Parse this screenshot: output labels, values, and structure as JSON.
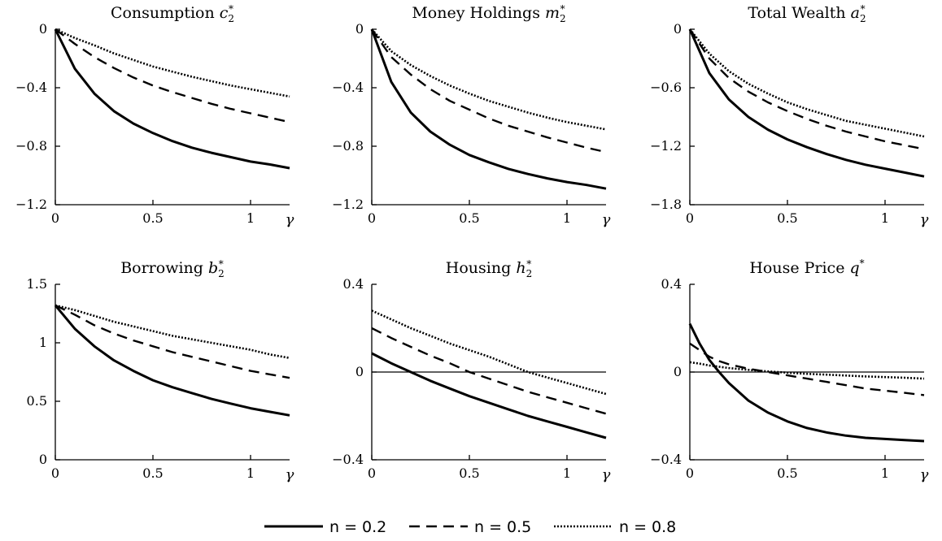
{
  "chart_data": [
    {
      "type": "line",
      "title": "Consumption",
      "title_var": "c",
      "title_sub": "2",
      "title_sup": "*",
      "xlabel": "γ",
      "ylabel": "",
      "xlim": [
        0,
        1.2
      ],
      "ylim": [
        -1.2,
        0
      ],
      "xticks": [
        0,
        0.5,
        1
      ],
      "xtick_labels": [
        "0",
        "0.5",
        "1"
      ],
      "yticks": [
        0,
        -0.4,
        -0.8,
        -1.2
      ],
      "ytick_labels": [
        "0",
        "−0.4",
        "−0.8",
        "−1.2"
      ],
      "zero_line": false,
      "x": [
        0,
        0.1,
        0.2,
        0.3,
        0.4,
        0.5,
        0.6,
        0.7,
        0.8,
        0.9,
        1.0,
        1.1,
        1.2
      ],
      "series": [
        {
          "name": "n = 0.2",
          "dash": "solid",
          "values": [
            0,
            -0.27,
            -0.44,
            -0.56,
            -0.645,
            -0.71,
            -0.765,
            -0.81,
            -0.845,
            -0.875,
            -0.905,
            -0.925,
            -0.95
          ]
        },
        {
          "name": "n = 0.5",
          "dash": "dashed",
          "values": [
            0,
            -0.1,
            -0.19,
            -0.265,
            -0.33,
            -0.385,
            -0.43,
            -0.47,
            -0.51,
            -0.545,
            -0.575,
            -0.605,
            -0.635
          ]
        },
        {
          "name": "n = 0.8",
          "dash": "dotted",
          "values": [
            0,
            -0.06,
            -0.11,
            -0.165,
            -0.21,
            -0.255,
            -0.29,
            -0.325,
            -0.355,
            -0.385,
            -0.41,
            -0.435,
            -0.46
          ]
        }
      ]
    },
    {
      "type": "line",
      "title": "Money Holdings",
      "title_var": "m",
      "title_sub": "2",
      "title_sup": "*",
      "xlabel": "γ",
      "ylabel": "",
      "xlim": [
        0,
        1.2
      ],
      "ylim": [
        -1.2,
        0
      ],
      "xticks": [
        0,
        0.5,
        1
      ],
      "xtick_labels": [
        "0",
        "0.5",
        "1"
      ],
      "yticks": [
        0,
        -0.4,
        -0.8,
        -1.2
      ],
      "ytick_labels": [
        "0",
        "−0.4",
        "−0.8",
        "−1.2"
      ],
      "zero_line": false,
      "x": [
        0,
        0.1,
        0.2,
        0.3,
        0.4,
        0.5,
        0.6,
        0.7,
        0.8,
        0.9,
        1.0,
        1.1,
        1.2
      ],
      "series": [
        {
          "name": "n = 0.2",
          "dash": "solid",
          "values": [
            0,
            -0.36,
            -0.57,
            -0.7,
            -0.79,
            -0.86,
            -0.91,
            -0.955,
            -0.99,
            -1.02,
            -1.045,
            -1.065,
            -1.09
          ]
        },
        {
          "name": "n = 0.5",
          "dash": "dashed",
          "values": [
            0,
            -0.19,
            -0.31,
            -0.41,
            -0.49,
            -0.55,
            -0.61,
            -0.66,
            -0.7,
            -0.74,
            -0.775,
            -0.81,
            -0.84
          ]
        },
        {
          "name": "n = 0.8",
          "dash": "dotted",
          "values": [
            0,
            -0.15,
            -0.245,
            -0.32,
            -0.385,
            -0.44,
            -0.49,
            -0.53,
            -0.57,
            -0.605,
            -0.635,
            -0.66,
            -0.685
          ]
        }
      ]
    },
    {
      "type": "line",
      "title": "Total Wealth",
      "title_var": "a",
      "title_sub": "2",
      "title_sup": "*",
      "xlabel": "γ",
      "ylabel": "",
      "xlim": [
        0,
        1.2
      ],
      "ylim": [
        -1.8,
        0
      ],
      "xticks": [
        0,
        0.5,
        1
      ],
      "xtick_labels": [
        "0",
        "0.5",
        "1"
      ],
      "yticks": [
        0,
        -0.6,
        -1.2,
        -1.8
      ],
      "ytick_labels": [
        "0",
        "−0.6",
        "−1.2",
        "−1.8"
      ],
      "zero_line": false,
      "x": [
        0,
        0.1,
        0.2,
        0.3,
        0.4,
        0.5,
        0.6,
        0.7,
        0.8,
        0.9,
        1.0,
        1.1,
        1.2
      ],
      "series": [
        {
          "name": "n = 0.2",
          "dash": "solid",
          "values": [
            0,
            -0.45,
            -0.72,
            -0.9,
            -1.03,
            -1.13,
            -1.21,
            -1.28,
            -1.34,
            -1.39,
            -1.43,
            -1.47,
            -1.51
          ]
        },
        {
          "name": "n = 0.5",
          "dash": "dashed",
          "values": [
            0,
            -0.3,
            -0.5,
            -0.64,
            -0.75,
            -0.84,
            -0.92,
            -0.99,
            -1.05,
            -1.1,
            -1.15,
            -1.19,
            -1.23
          ]
        },
        {
          "name": "n = 0.8",
          "dash": "dotted",
          "values": [
            0,
            -0.25,
            -0.43,
            -0.56,
            -0.66,
            -0.75,
            -0.82,
            -0.88,
            -0.94,
            -0.98,
            -1.02,
            -1.06,
            -1.1
          ]
        }
      ]
    },
    {
      "type": "line",
      "title": "Borrowing",
      "title_var": "b",
      "title_sub": "2",
      "title_sup": "*",
      "xlabel": "γ",
      "ylabel": "",
      "xlim": [
        0,
        1.2
      ],
      "ylim": [
        0,
        1.5
      ],
      "xticks": [
        0,
        0.5,
        1
      ],
      "xtick_labels": [
        "0",
        "0.5",
        "1"
      ],
      "yticks": [
        1.5,
        1,
        0.5,
        0
      ],
      "ytick_labels": [
        "1.5",
        "1",
        "0.5",
        "0"
      ],
      "zero_line": true,
      "x": [
        0,
        0.1,
        0.2,
        0.3,
        0.4,
        0.5,
        0.6,
        0.7,
        0.8,
        0.9,
        1.0,
        1.1,
        1.2
      ],
      "series": [
        {
          "name": "n = 0.2",
          "dash": "solid",
          "values": [
            1.32,
            1.12,
            0.97,
            0.85,
            0.76,
            0.68,
            0.62,
            0.57,
            0.52,
            0.48,
            0.44,
            0.41,
            0.38
          ]
        },
        {
          "name": "n = 0.5",
          "dash": "dashed",
          "values": [
            1.32,
            1.24,
            1.15,
            1.08,
            1.02,
            0.97,
            0.92,
            0.88,
            0.84,
            0.8,
            0.76,
            0.73,
            0.7
          ]
        },
        {
          "name": "n = 0.8",
          "dash": "dotted",
          "values": [
            1.32,
            1.28,
            1.23,
            1.18,
            1.14,
            1.1,
            1.06,
            1.03,
            1.0,
            0.97,
            0.94,
            0.9,
            0.87
          ]
        }
      ]
    },
    {
      "type": "line",
      "title": "Housing",
      "title_var": "h",
      "title_sub": "2",
      "title_sup": "*",
      "xlabel": "γ",
      "ylabel": "",
      "xlim": [
        0,
        1.2
      ],
      "ylim": [
        -0.4,
        0.4
      ],
      "xticks": [
        0,
        0.5,
        1
      ],
      "xtick_labels": [
        "0",
        "0.5",
        "1"
      ],
      "yticks": [
        0.4,
        0,
        -0.4
      ],
      "ytick_labels": [
        "0.4",
        "0",
        "−0.4"
      ],
      "zero_line": true,
      "x": [
        0,
        0.1,
        0.2,
        0.3,
        0.4,
        0.5,
        0.6,
        0.7,
        0.8,
        0.9,
        1.0,
        1.1,
        1.2
      ],
      "series": [
        {
          "name": "n = 0.2",
          "dash": "solid",
          "values": [
            0.085,
            0.04,
            0.0,
            -0.04,
            -0.075,
            -0.11,
            -0.14,
            -0.17,
            -0.2,
            -0.225,
            -0.25,
            -0.275,
            -0.3
          ]
        },
        {
          "name": "n = 0.5",
          "dash": "dashed",
          "values": [
            0.2,
            0.155,
            0.115,
            0.075,
            0.04,
            0.0,
            -0.03,
            -0.06,
            -0.09,
            -0.115,
            -0.14,
            -0.165,
            -0.19
          ]
        },
        {
          "name": "n = 0.8",
          "dash": "dotted",
          "values": [
            0.28,
            0.24,
            0.2,
            0.165,
            0.13,
            0.1,
            0.07,
            0.035,
            0.0,
            -0.025,
            -0.05,
            -0.075,
            -0.1
          ]
        }
      ]
    },
    {
      "type": "line",
      "title": "House Price",
      "title_var": "q",
      "title_sub": "",
      "title_sup": "*",
      "xlabel": "γ",
      "ylabel": "",
      "xlim": [
        0,
        1.2
      ],
      "ylim": [
        -0.4,
        0.4
      ],
      "xticks": [
        0,
        0.5,
        1
      ],
      "xtick_labels": [
        "0",
        "0.5",
        "1"
      ],
      "yticks": [
        0.4,
        0,
        -0.4
      ],
      "ytick_labels": [
        "0.4",
        "0",
        "−0.4"
      ],
      "zero_line": true,
      "x": [
        0,
        0.05,
        0.1,
        0.15,
        0.2,
        0.3,
        0.4,
        0.5,
        0.6,
        0.7,
        0.8,
        0.9,
        1.0,
        1.1,
        1.2
      ],
      "series": [
        {
          "name": "n = 0.2",
          "dash": "solid",
          "values": [
            0.22,
            0.13,
            0.055,
            0.0,
            -0.05,
            -0.13,
            -0.185,
            -0.225,
            -0.255,
            -0.275,
            -0.29,
            -0.3,
            -0.305,
            -0.31,
            -0.315
          ]
        },
        {
          "name": "n = 0.5",
          "dash": "dashed",
          "values": [
            0.13,
            0.1,
            0.07,
            0.05,
            0.035,
            0.015,
            0.0,
            -0.015,
            -0.03,
            -0.045,
            -0.06,
            -0.075,
            -0.085,
            -0.095,
            -0.105
          ]
        },
        {
          "name": "n = 0.8",
          "dash": "dotted",
          "values": [
            0.045,
            0.038,
            0.03,
            0.024,
            0.018,
            0.01,
            0.003,
            -0.003,
            -0.008,
            -0.012,
            -0.016,
            -0.02,
            -0.023,
            -0.026,
            -0.03
          ]
        }
      ]
    }
  ],
  "legend": {
    "items": [
      {
        "label": "n = 0.2",
        "dash": "solid"
      },
      {
        "label": "n = 0.5",
        "dash": "dashed"
      },
      {
        "label": "n = 0.8",
        "dash": "dotted"
      }
    ]
  }
}
